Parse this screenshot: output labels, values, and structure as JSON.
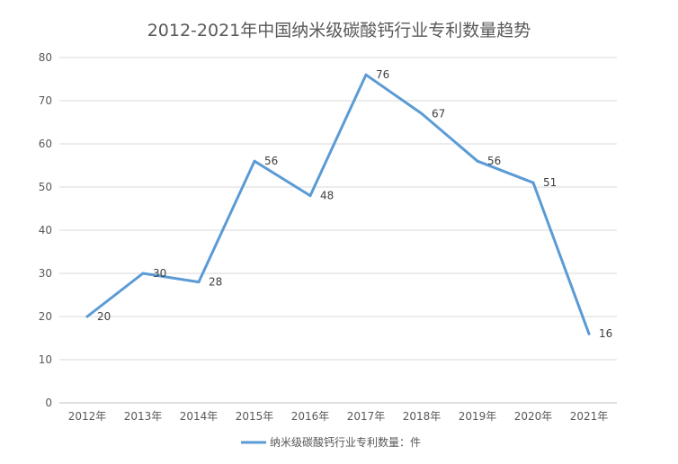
{
  "chart_data": {
    "type": "line",
    "title": "2012-2021年中国纳米级碳酸钙行业专利数量趋势",
    "categories": [
      "2012年",
      "2013年",
      "2014年",
      "2015年",
      "2016年",
      "2017年",
      "2018年",
      "2019年",
      "2020年",
      "2021年"
    ],
    "series": [
      {
        "name": "纳米级碳酸钙行业专利数量：件",
        "values": [
          20,
          30,
          28,
          56,
          48,
          76,
          67,
          56,
          51,
          16
        ],
        "color": "#5b9bd5"
      }
    ],
    "ylim": [
      0,
      80
    ],
    "yticks": [
      0,
      10,
      20,
      30,
      40,
      50,
      60,
      70,
      80
    ],
    "grid": true,
    "legend": "bottom-center"
  }
}
